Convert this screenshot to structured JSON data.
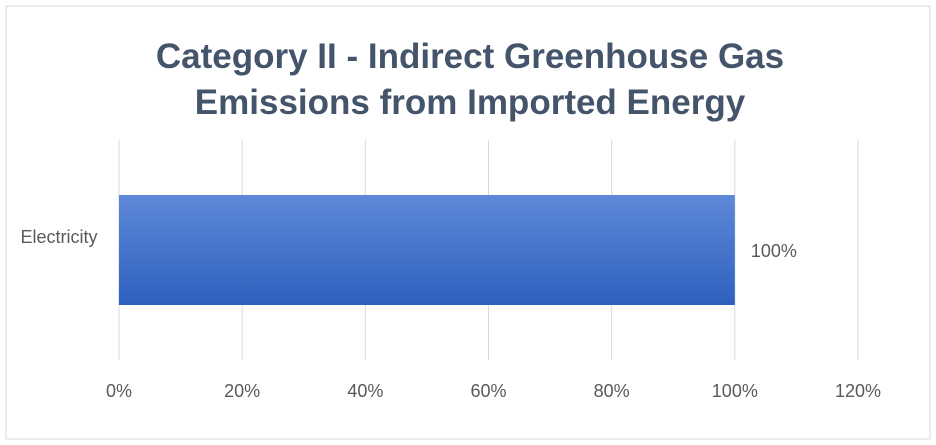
{
  "chart_data": {
    "type": "bar",
    "orientation": "horizontal",
    "title": "Category II - Indirect Greenhouse Gas Emissions from Imported Energy",
    "categories": [
      "Electricity"
    ],
    "values": [
      100
    ],
    "value_labels": [
      "100%"
    ],
    "color": "#3d6fcc",
    "xlim": [
      0,
      120
    ],
    "xticks": [
      {
        "value": 0,
        "label": "0%"
      },
      {
        "value": 20,
        "label": "20%"
      },
      {
        "value": 40,
        "label": "40%"
      },
      {
        "value": 60,
        "label": "60%"
      },
      {
        "value": 80,
        "label": "80%"
      },
      {
        "value": 100,
        "label": "100%"
      },
      {
        "value": 120,
        "label": "120%"
      }
    ],
    "grid": true
  }
}
